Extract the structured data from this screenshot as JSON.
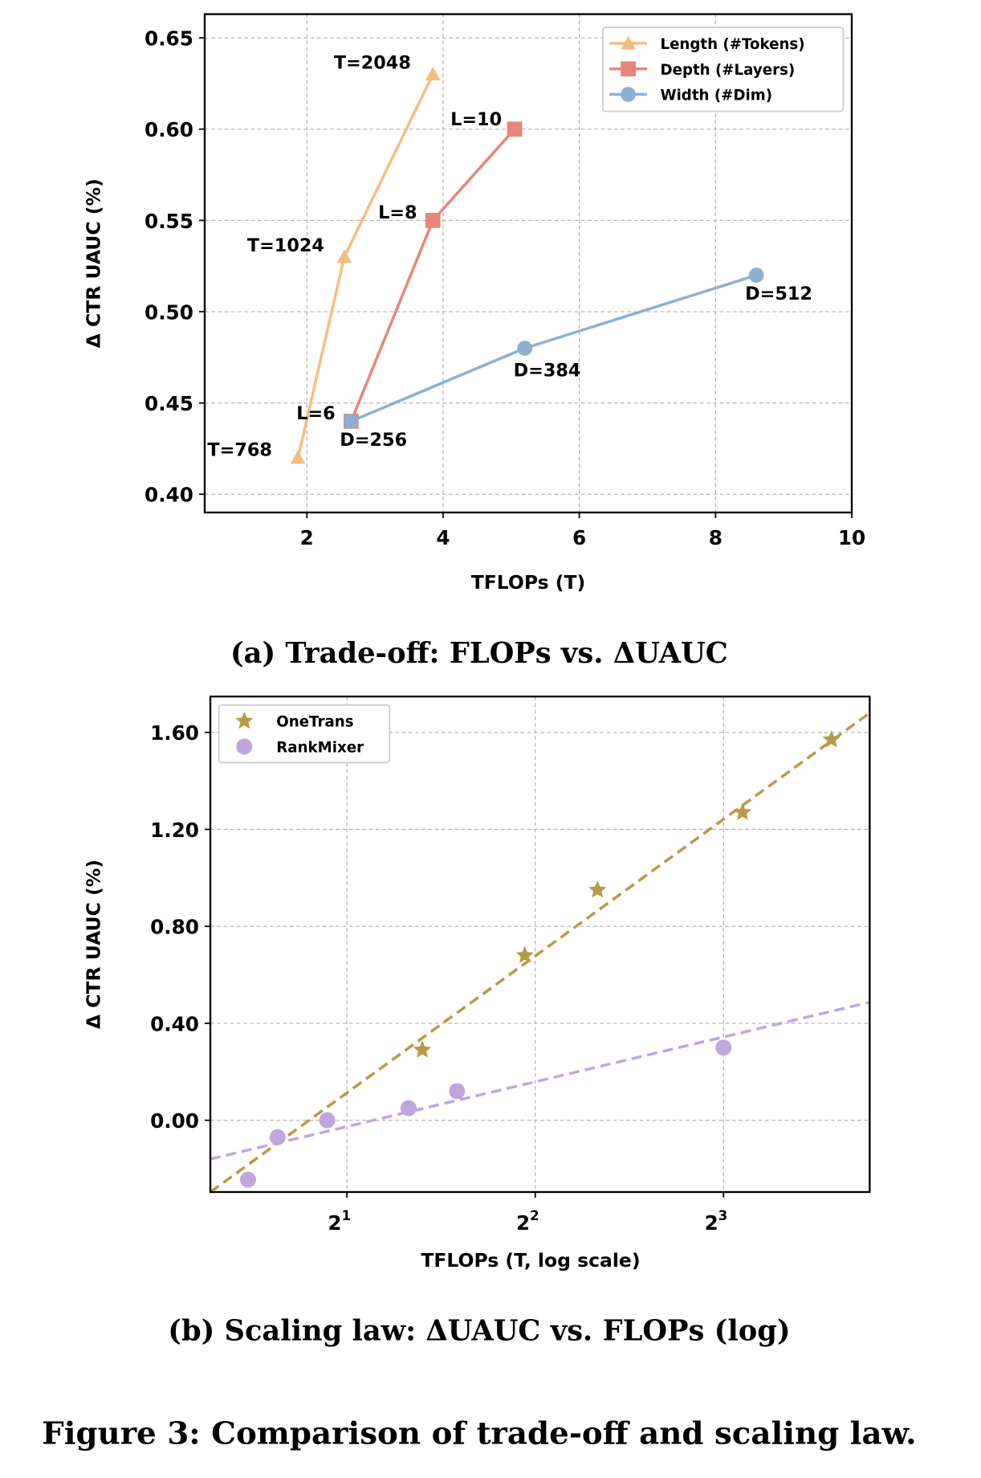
{
  "chart_data": [
    {
      "type": "line",
      "caption": "(a) Trade-off: FLOPs vs. ΔUAUC",
      "xlabel": "TFLOPs (T)",
      "ylabel": "Δ CTR UAUC (%)",
      "xlim": [
        0.5,
        10
      ],
      "ylim": [
        0.39,
        0.663
      ],
      "xticks": [
        2,
        4,
        6,
        8,
        10
      ],
      "xtick_labels": [
        "2",
        "4",
        "6",
        "8",
        "10"
      ],
      "yticks": [
        0.4,
        0.45,
        0.5,
        0.55,
        0.6,
        0.65
      ],
      "ytick_labels": [
        "0.40",
        "0.45",
        "0.50",
        "0.55",
        "0.60",
        "0.65"
      ],
      "grid": true,
      "legend_position": "top-right",
      "series": [
        {
          "name": "Length (#Tokens)",
          "color": "#F5BE7E",
          "marker": "triangle",
          "x": [
            1.87,
            2.55,
            3.85
          ],
          "y": [
            0.42,
            0.53,
            0.63
          ],
          "labels": [
            "T=768",
            "T=1024",
            "T=2048"
          ]
        },
        {
          "name": "Depth (#Layers)",
          "color": "#E8867A",
          "marker": "square",
          "x": [
            2.65,
            3.85,
            5.05
          ],
          "y": [
            0.44,
            0.55,
            0.6
          ],
          "labels": [
            "L=6",
            "L=8",
            "L=10"
          ]
        },
        {
          "name": "Width (#Dim)",
          "color": "#8CB0D2",
          "marker": "circle",
          "x": [
            2.65,
            5.2,
            8.6
          ],
          "y": [
            0.44,
            0.48,
            0.52
          ],
          "labels": [
            "D=256",
            "D=384",
            "D=512"
          ]
        }
      ]
    },
    {
      "type": "scatter",
      "caption": "(b) Scaling law: ΔUAUC vs. FLOPs (log)",
      "xlabel": "TFLOPs (T, log scale)",
      "ylabel": "Δ CTR UAUC (%)",
      "xscale": "log2",
      "xlim": [
        1.21,
        13.7
      ],
      "ylim": [
        -0.296,
        1.748
      ],
      "xticks": [
        2,
        4,
        8
      ],
      "xtick_labels": [
        {
          "base": "2",
          "exp": "1"
        },
        {
          "base": "2",
          "exp": "2"
        },
        {
          "base": "2",
          "exp": "3"
        }
      ],
      "yticks": [
        0.0,
        0.4,
        0.8,
        1.2,
        1.6
      ],
      "ytick_labels": [
        "0.00",
        "0.40",
        "0.80",
        "1.20",
        "1.60"
      ],
      "grid": true,
      "legend_position": "top-left",
      "series": [
        {
          "name": "OneTrans",
          "color": "#B89A45",
          "marker": "star",
          "x": [
            2.64,
            3.85,
            5.03,
            8.58,
            11.9
          ],
          "y": [
            0.29,
            0.68,
            0.95,
            1.27,
            1.57
          ],
          "fit": {
            "x": [
              1.21,
              13.7
            ],
            "y": [
              -0.296,
              1.68
            ]
          }
        },
        {
          "name": "RankMixer",
          "color": "#C0A6DC",
          "marker": "circle",
          "x": [
            1.39,
            1.55,
            1.86,
            2.51,
            3.0,
            8.0
          ],
          "y": [
            -0.245,
            -0.07,
            0.0,
            0.05,
            0.12,
            0.3
          ],
          "fit": {
            "x": [
              1.21,
              13.7
            ],
            "y": [
              -0.16,
              0.487
            ]
          }
        }
      ]
    }
  ],
  "figure_caption": "Figure 3: Comparison of trade-off and scaling law."
}
